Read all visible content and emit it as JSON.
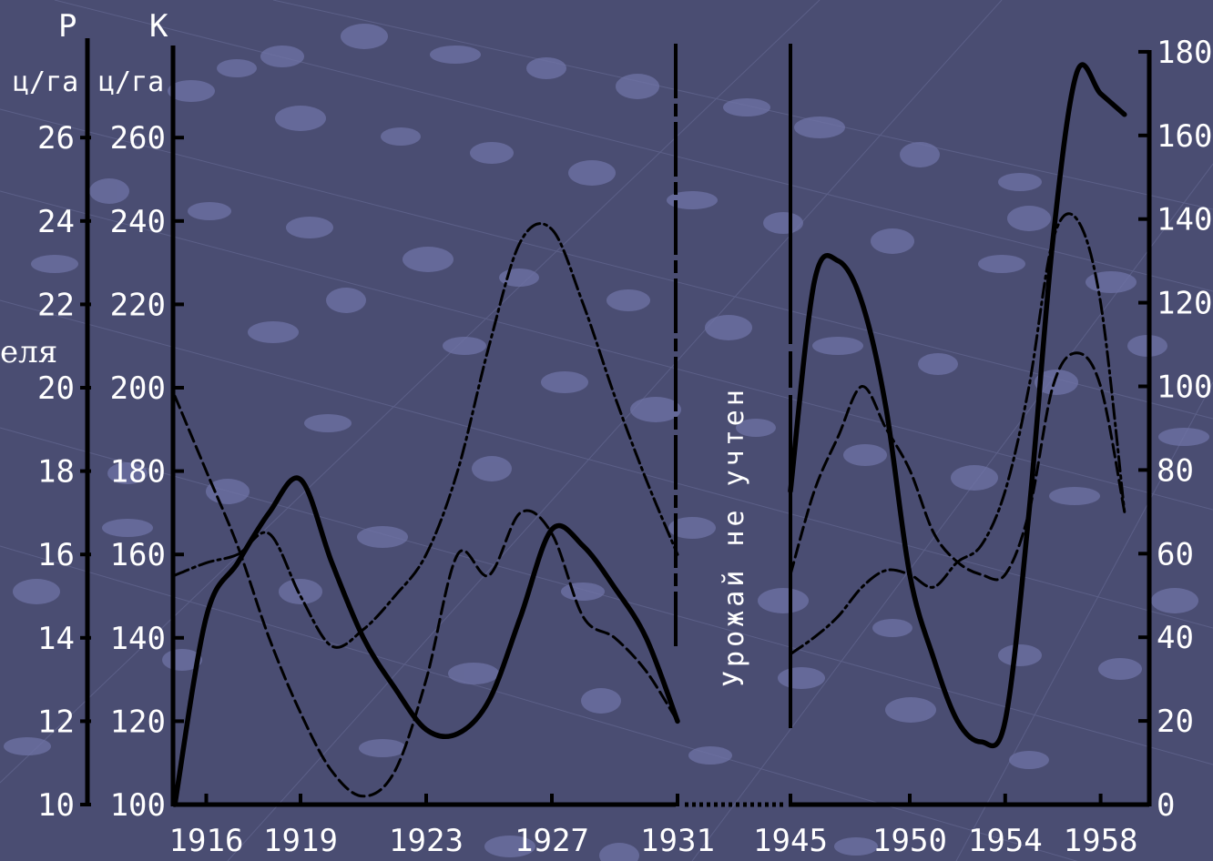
{
  "chart_data": {
    "type": "line",
    "left_axis_p": {
      "letter": "Р",
      "unit": "ц/га",
      "ticks": [
        "10",
        "12",
        "14",
        "16",
        "18",
        "20",
        "22",
        "24",
        "26"
      ]
    },
    "left_axis_k": {
      "letter": "К",
      "unit": "ц/га",
      "ticks": [
        "100",
        "120",
        "140",
        "160",
        "180",
        "200",
        "220",
        "240",
        "260"
      ]
    },
    "right_axis": {
      "ticks": [
        "0",
        "20",
        "40",
        "60",
        "80",
        "100",
        "120",
        "140",
        "160",
        "180"
      ]
    },
    "x_ticks": [
      "1916",
      "1919",
      "1923",
      "1927",
      "1931",
      "1945",
      "1950",
      "1954",
      "1958"
    ],
    "gap_label": "Урожай не учтен",
    "side_text": "еля",
    "series": [
      {
        "style": "thick-solid",
        "segment1": {
          "x": [
            1915,
            1916,
            1917,
            1918,
            1919,
            1920,
            1921,
            1922,
            1923,
            1924,
            1925,
            1926,
            1927,
            1928,
            1929,
            1930,
            1931
          ],
          "k": [
            100,
            145,
            158,
            170,
            178,
            158,
            140,
            128,
            118,
            117,
            125,
            145,
            166,
            162,
            152,
            140,
            120
          ]
        },
        "segment2": {
          "x": [
            1945,
            1946,
            1947,
            1948,
            1949,
            1950,
            1951,
            1952,
            1953,
            1954,
            1955,
            1956,
            1957,
            1958,
            1959
          ],
          "right": [
            75,
            125,
            130,
            120,
            95,
            55,
            35,
            20,
            15,
            20,
            70,
            135,
            175,
            170,
            165
          ]
        }
      },
      {
        "style": "thin-dashed",
        "segment1": {
          "x": [
            1915,
            1916,
            1917,
            1918,
            1919,
            1920,
            1921,
            1922,
            1923,
            1924,
            1925,
            1926,
            1927,
            1928,
            1929,
            1930,
            1931
          ],
          "k": [
            198,
            180,
            162,
            140,
            122,
            108,
            102,
            108,
            130,
            160,
            155,
            170,
            165,
            145,
            140,
            132,
            120
          ]
        },
        "segment2": {
          "x": [
            1945,
            1946,
            1947,
            1948,
            1949,
            1950,
            1951,
            1952,
            1953,
            1954,
            1955,
            1956,
            1957,
            1958,
            1959
          ],
          "right": [
            55,
            75,
            88,
            100,
            90,
            80,
            65,
            58,
            55,
            55,
            70,
            100,
            108,
            100,
            70
          ]
        }
      },
      {
        "style": "thin-dash-dot",
        "segment1": {
          "x": [
            1915,
            1916,
            1917,
            1918,
            1919,
            1920,
            1921,
            1922,
            1923,
            1924,
            1925,
            1926,
            1927,
            1928,
            1929,
            1930,
            1931
          ],
          "k": [
            155,
            158,
            160,
            165,
            150,
            138,
            142,
            150,
            160,
            180,
            210,
            235,
            238,
            220,
            198,
            178,
            160
          ]
        },
        "segment2": {
          "x": [
            1945,
            1946,
            1947,
            1948,
            1949,
            1950,
            1951,
            1952,
            1953,
            1954,
            1955,
            1956,
            1957,
            1958,
            1959
          ],
          "right": [
            36,
            40,
            45,
            52,
            56,
            55,
            52,
            58,
            62,
            75,
            100,
            135,
            140,
            120,
            70
          ]
        }
      }
    ]
  }
}
